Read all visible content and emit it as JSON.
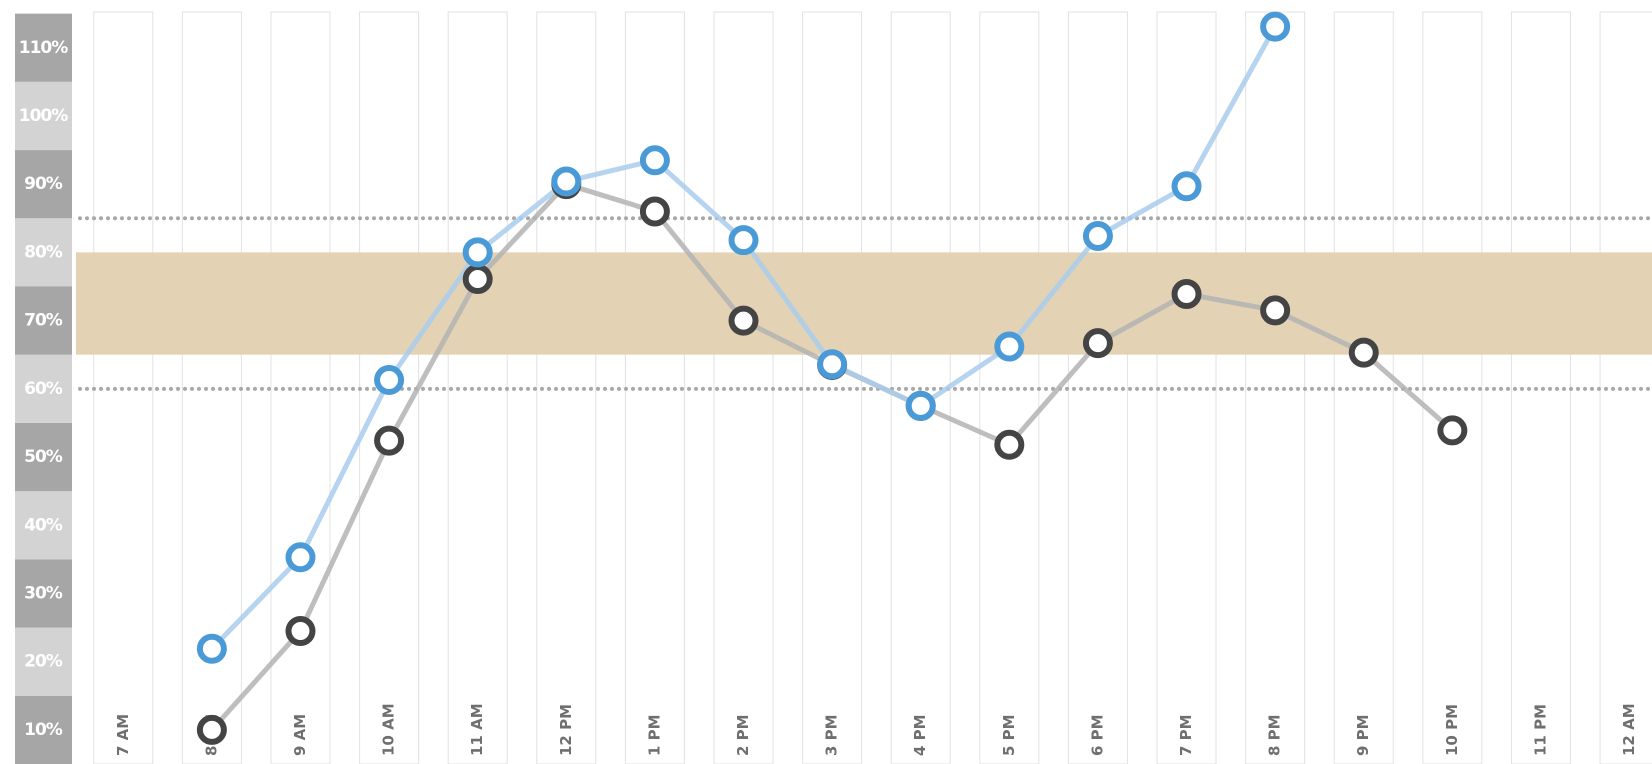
{
  "chart_data": {
    "type": "line",
    "categories": [
      "7 AM",
      "8 AM",
      "9 AM",
      "10 AM",
      "11 AM",
      "12 PM",
      "1 PM",
      "2 PM",
      "3 PM",
      "4 PM",
      "5 PM",
      "6 PM",
      "7 PM",
      "8 PM",
      "9 PM",
      "10 PM",
      "11 PM",
      "12 AM"
    ],
    "series": [
      {
        "color": "#444444",
        "line_color": "#b3b3b3",
        "values": [
          null,
          10,
          24.5,
          52.4,
          76.1,
          90,
          86,
          70,
          63.5,
          57.5,
          51.8,
          66.7,
          73.9,
          71.5,
          65.3,
          53.9,
          null,
          null
        ]
      },
      {
        "color": "#4a9ad8",
        "line_color": "#a9cdec",
        "values": [
          null,
          21.9,
          35.3,
          61.3,
          80,
          90.4,
          93.5,
          81.8,
          63.6,
          57.5,
          66.2,
          82.4,
          89.7,
          113.1,
          null,
          null,
          null,
          null
        ]
      }
    ],
    "ylim": [
      5,
      117
    ],
    "yticks": [
      {
        "value": 10,
        "label": "10%"
      },
      {
        "value": 20,
        "label": "20%"
      },
      {
        "value": 30,
        "label": "30%"
      },
      {
        "value": 40,
        "label": "40%"
      },
      {
        "value": 50,
        "label": "50%"
      },
      {
        "value": 60,
        "label": "60%"
      },
      {
        "value": 70,
        "label": "70%"
      },
      {
        "value": 80,
        "label": "80%"
      },
      {
        "value": 90,
        "label": "90%"
      },
      {
        "value": 100,
        "label": "100%"
      },
      {
        "value": 110,
        "label": "110%"
      }
    ],
    "target_range": [
      65,
      80
    ],
    "limit_lines": [
      60,
      85
    ]
  }
}
